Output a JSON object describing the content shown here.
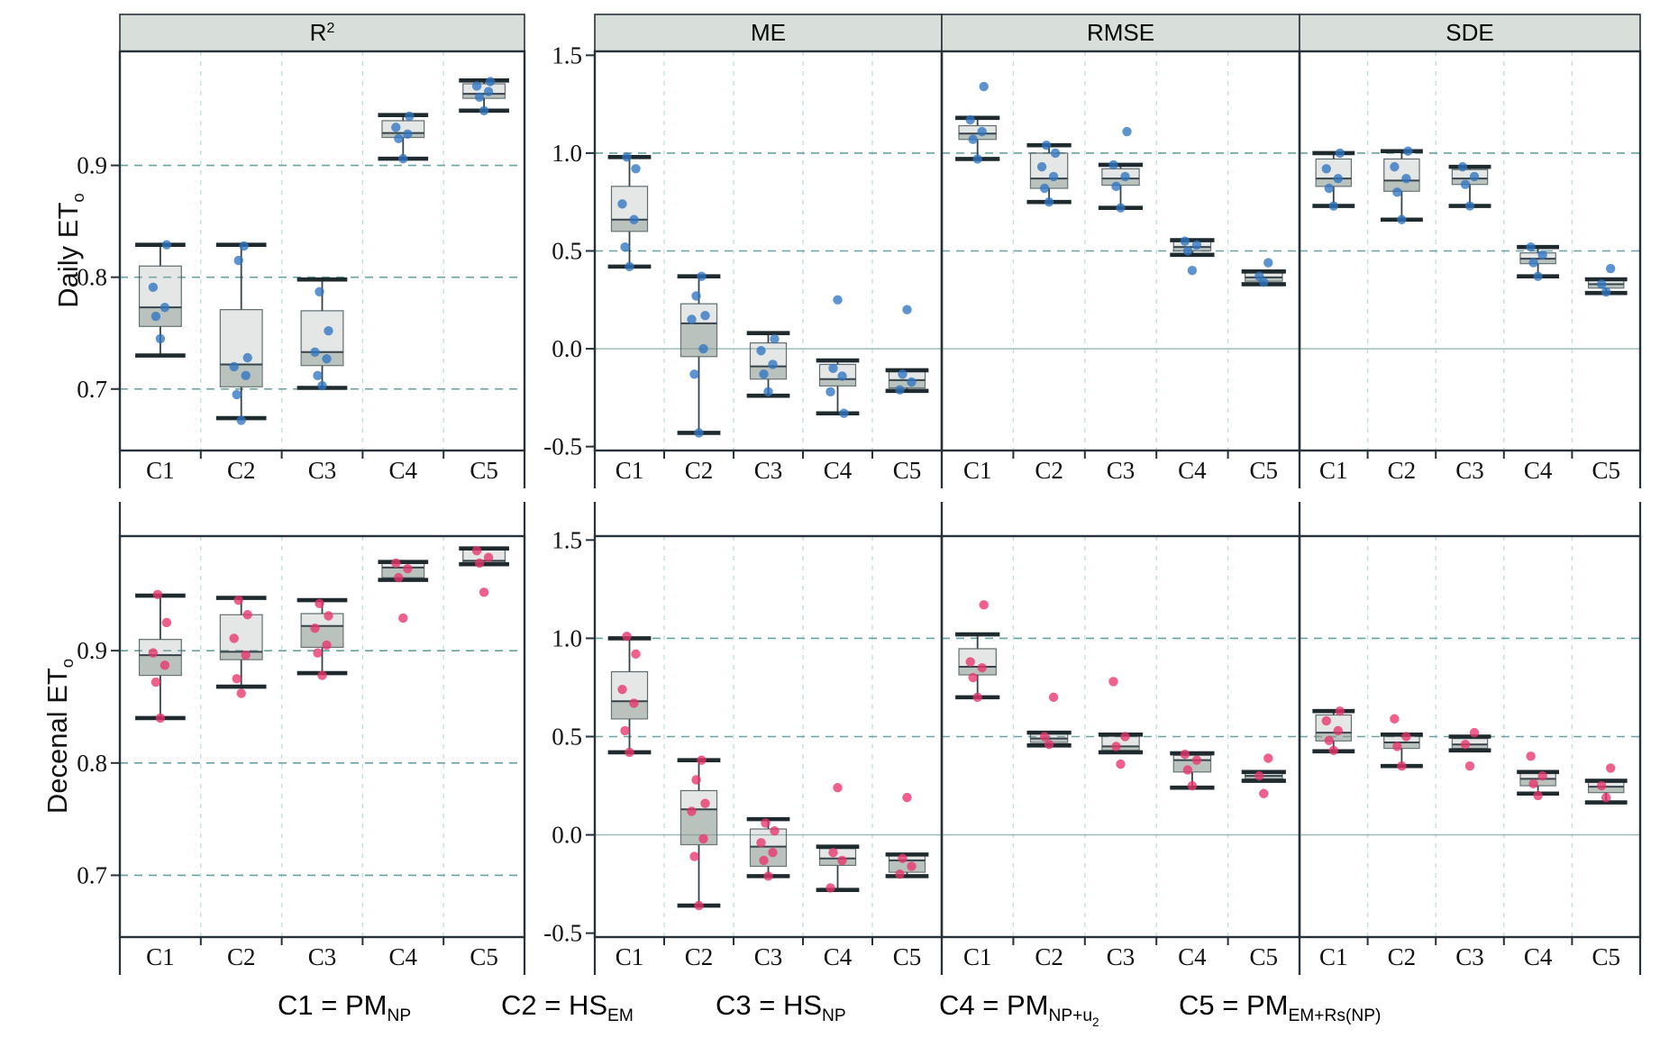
{
  "rows": [
    {
      "label": "Daily ET",
      "sub": "o"
    },
    {
      "label": "Decenal ET",
      "sub": "o"
    }
  ],
  "categories": [
    "C1",
    "C2",
    "C3",
    "C4",
    "C5"
  ],
  "headers": [
    {
      "text": "R",
      "sup": "2"
    },
    {
      "text": "ME",
      "sup": ""
    },
    {
      "text": "RMSE",
      "sup": ""
    },
    {
      "text": "SDE",
      "sup": ""
    }
  ],
  "legend": {
    "items": [
      {
        "main": "C1 = PM",
        "sub": "NP",
        "sub2": ""
      },
      {
        "main": "C2 = HS",
        "sub": "EM",
        "sub2": ""
      },
      {
        "main": "C3 = HS",
        "sub": "NP",
        "sub2": ""
      },
      {
        "main": "C4 = PM",
        "sub": "NP+u",
        "sub2": "2"
      },
      {
        "main": "C5 = PM",
        "sub": "EM+Rs(NP)",
        "sub2": ""
      }
    ]
  },
  "colors": {
    "header_bg": "#d8dfda",
    "frame": "#27313a",
    "h_grid": "#69a2a2",
    "v_grid": "#c3e0df",
    "zero_line": "#95b8b4",
    "box_fill": "rgba(164,177,172,0.30)",
    "box_inner": "rgba(128,142,137,0.42)",
    "box_stroke": "rgba(70,85,88,0.85)",
    "median": "#37434a",
    "whisker": "#37434a",
    "cap": "#1f2a2f",
    "point_daily": "#2f75c2",
    "point_decenal": "#e8356b",
    "tick_text": "#111111"
  },
  "chart_data": [
    {
      "type": "box",
      "row": "Daily ETo",
      "metric": "R2",
      "ylim": [
        0.645,
        1.002
      ],
      "yticks": [
        0.7,
        0.8,
        0.9
      ],
      "ytick_labels": [
        "0.7",
        "0.8",
        "0.9"
      ],
      "show_ytick_labels": true,
      "zero_line": false,
      "boxes": [
        {
          "cat": "C1",
          "low": 0.73,
          "q1": 0.756,
          "med": 0.773,
          "q3": 0.81,
          "high": 0.829,
          "points": [
            0.745,
            0.765,
            0.773,
            0.791,
            0.829
          ]
        },
        {
          "cat": "C2",
          "low": 0.674,
          "q1": 0.702,
          "med": 0.722,
          "q3": 0.771,
          "high": 0.829,
          "points": [
            0.672,
            0.695,
            0.712,
            0.72,
            0.728,
            0.815,
            0.828
          ]
        },
        {
          "cat": "C3",
          "low": 0.701,
          "q1": 0.721,
          "med": 0.733,
          "q3": 0.77,
          "high": 0.798,
          "points": [
            0.703,
            0.712,
            0.727,
            0.733,
            0.752,
            0.787
          ]
        },
        {
          "cat": "C4",
          "low": 0.906,
          "q1": 0.925,
          "med": 0.929,
          "q3": 0.94,
          "high": 0.945,
          "points": [
            0.906,
            0.924,
            0.928,
            0.934,
            0.944
          ]
        },
        {
          "cat": "C5",
          "low": 0.949,
          "q1": 0.96,
          "med": 0.964,
          "q3": 0.973,
          "high": 0.976,
          "points": [
            0.949,
            0.961,
            0.966,
            0.971,
            0.975
          ]
        }
      ]
    },
    {
      "type": "box",
      "row": "Daily ETo",
      "metric": "ME",
      "ylim": [
        -0.52,
        1.52
      ],
      "yticks": [
        -0.5,
        0.0,
        0.5,
        1.0,
        1.5
      ],
      "ytick_labels": [
        "-0.5",
        "0.0",
        "0.5",
        "1.0",
        "1.5"
      ],
      "show_ytick_labels": true,
      "zero_line": true,
      "boxes": [
        {
          "cat": "C1",
          "low": 0.42,
          "q1": 0.6,
          "med": 0.66,
          "q3": 0.83,
          "high": 0.98,
          "points": [
            0.42,
            0.52,
            0.66,
            0.74,
            0.92,
            0.98
          ]
        },
        {
          "cat": "C2",
          "low": -0.43,
          "q1": -0.04,
          "med": 0.13,
          "q3": 0.23,
          "high": 0.37,
          "points": [
            -0.43,
            -0.13,
            0.0,
            0.15,
            0.17,
            0.27,
            0.37
          ]
        },
        {
          "cat": "C3",
          "low": -0.24,
          "q1": -0.155,
          "med": -0.09,
          "q3": 0.03,
          "high": 0.08,
          "points": [
            -0.22,
            -0.13,
            -0.08,
            -0.01,
            0.05
          ]
        },
        {
          "cat": "C4",
          "low": -0.33,
          "q1": -0.19,
          "med": -0.155,
          "q3": -0.08,
          "high": -0.06,
          "points": [
            0.25,
            -0.1,
            -0.14,
            -0.22,
            -0.33
          ]
        },
        {
          "cat": "C5",
          "low": -0.215,
          "q1": -0.2,
          "med": -0.16,
          "q3": -0.115,
          "high": -0.11,
          "points": [
            0.2,
            -0.13,
            -0.17,
            -0.21
          ]
        }
      ]
    },
    {
      "type": "box",
      "row": "Daily ETo",
      "metric": "RMSE",
      "ylim": [
        -0.52,
        1.52
      ],
      "yticks": [
        -0.5,
        0.0,
        0.5,
        1.0,
        1.5
      ],
      "ytick_labels": [
        "-0.5",
        "0.0",
        "0.5",
        "1.0",
        "1.5"
      ],
      "show_ytick_labels": false,
      "zero_line": true,
      "boxes": [
        {
          "cat": "C1",
          "low": 0.97,
          "q1": 1.07,
          "med": 1.1,
          "q3": 1.14,
          "high": 1.18,
          "points": [
            0.97,
            1.07,
            1.11,
            1.17,
            1.34
          ]
        },
        {
          "cat": "C2",
          "low": 0.75,
          "q1": 0.82,
          "med": 0.87,
          "q3": 1.0,
          "high": 1.04,
          "points": [
            0.75,
            0.82,
            0.88,
            0.93,
            1.0,
            1.04
          ]
        },
        {
          "cat": "C3",
          "low": 0.72,
          "q1": 0.836,
          "med": 0.87,
          "q3": 0.92,
          "high": 0.94,
          "points": [
            0.72,
            0.83,
            0.88,
            0.94,
            1.11
          ]
        },
        {
          "cat": "C4",
          "low": 0.48,
          "q1": 0.5,
          "med": 0.52,
          "q3": 0.55,
          "high": 0.555,
          "points": [
            0.4,
            0.5,
            0.53,
            0.55
          ]
        },
        {
          "cat": "C5",
          "low": 0.33,
          "q1": 0.345,
          "med": 0.365,
          "q3": 0.39,
          "high": 0.395,
          "points": [
            0.34,
            0.37,
            0.44
          ]
        }
      ]
    },
    {
      "type": "box",
      "row": "Daily ETo",
      "metric": "SDE",
      "ylim": [
        -0.52,
        1.52
      ],
      "yticks": [
        -0.5,
        0.0,
        0.5,
        1.0,
        1.5
      ],
      "ytick_labels": [
        "-0.5",
        "0.0",
        "0.5",
        "1.0",
        "1.5"
      ],
      "show_ytick_labels": false,
      "zero_line": true,
      "boxes": [
        {
          "cat": "C1",
          "low": 0.73,
          "q1": 0.83,
          "med": 0.87,
          "q3": 0.97,
          "high": 1.0,
          "points": [
            0.73,
            0.82,
            0.87,
            0.92,
            1.0
          ]
        },
        {
          "cat": "C2",
          "low": 0.66,
          "q1": 0.805,
          "med": 0.86,
          "q3": 0.97,
          "high": 1.01,
          "points": [
            0.66,
            0.8,
            0.87,
            0.93,
            1.01
          ]
        },
        {
          "cat": "C3",
          "low": 0.73,
          "q1": 0.84,
          "med": 0.87,
          "q3": 0.916,
          "high": 0.93,
          "points": [
            0.73,
            0.84,
            0.88,
            0.93
          ]
        },
        {
          "cat": "C4",
          "low": 0.37,
          "q1": 0.435,
          "med": 0.46,
          "q3": 0.49,
          "high": 0.52,
          "points": [
            0.37,
            0.44,
            0.48,
            0.52
          ]
        },
        {
          "cat": "C5",
          "low": 0.285,
          "q1": 0.31,
          "med": 0.33,
          "q3": 0.35,
          "high": 0.355,
          "points": [
            0.29,
            0.33,
            0.41
          ]
        }
      ]
    },
    {
      "type": "box",
      "row": "Decenal ETo",
      "metric": "R2",
      "ylim": [
        0.645,
        1.002
      ],
      "yticks": [
        0.7,
        0.8,
        0.9
      ],
      "ytick_labels": [
        "0.7",
        "0.8",
        "0.9"
      ],
      "show_ytick_labels": true,
      "zero_line": false,
      "boxes": [
        {
          "cat": "C1",
          "low": 0.84,
          "q1": 0.878,
          "med": 0.896,
          "q3": 0.91,
          "high": 0.949,
          "points": [
            0.84,
            0.872,
            0.887,
            0.898,
            0.925,
            0.95
          ]
        },
        {
          "cat": "C2",
          "low": 0.868,
          "q1": 0.892,
          "med": 0.899,
          "q3": 0.932,
          "high": 0.947,
          "points": [
            0.862,
            0.875,
            0.896,
            0.911,
            0.932,
            0.945
          ]
        },
        {
          "cat": "C3",
          "low": 0.88,
          "q1": 0.903,
          "med": 0.922,
          "q3": 0.933,
          "high": 0.945,
          "points": [
            0.878,
            0.898,
            0.905,
            0.92,
            0.931,
            0.942
          ]
        },
        {
          "cat": "C4",
          "low": 0.963,
          "q1": 0.965,
          "med": 0.974,
          "q3": 0.978,
          "high": 0.979,
          "points": [
            0.929,
            0.965,
            0.973,
            0.978
          ]
        },
        {
          "cat": "C5",
          "low": 0.977,
          "q1": 0.978,
          "med": 0.98,
          "q3": 0.99,
          "high": 0.991,
          "points": [
            0.952,
            0.978,
            0.983,
            0.989
          ]
        }
      ]
    },
    {
      "type": "box",
      "row": "Decenal ETo",
      "metric": "ME",
      "ylim": [
        -0.52,
        1.52
      ],
      "yticks": [
        -0.5,
        0.0,
        0.5,
        1.0,
        1.5
      ],
      "ytick_labels": [
        "-0.5",
        "0.0",
        "0.5",
        "1.0",
        "1.5"
      ],
      "show_ytick_labels": true,
      "zero_line": true,
      "boxes": [
        {
          "cat": "C1",
          "low": 0.42,
          "q1": 0.59,
          "med": 0.68,
          "q3": 0.83,
          "high": 1.0,
          "points": [
            0.42,
            0.53,
            0.67,
            0.74,
            0.92,
            1.01
          ]
        },
        {
          "cat": "C2",
          "low": -0.36,
          "q1": -0.05,
          "med": 0.13,
          "q3": 0.225,
          "high": 0.38,
          "points": [
            -0.36,
            -0.11,
            -0.02,
            0.12,
            0.16,
            0.28,
            0.38
          ]
        },
        {
          "cat": "C3",
          "low": -0.21,
          "q1": -0.16,
          "med": -0.06,
          "q3": 0.03,
          "high": 0.08,
          "points": [
            -0.21,
            -0.13,
            -0.09,
            -0.04,
            0.02,
            0.06
          ]
        },
        {
          "cat": "C4",
          "low": -0.28,
          "q1": -0.155,
          "med": -0.12,
          "q3": -0.07,
          "high": -0.06,
          "points": [
            0.24,
            -0.09,
            -0.13,
            -0.27
          ]
        },
        {
          "cat": "C5",
          "low": -0.21,
          "q1": -0.19,
          "med": -0.13,
          "q3": -0.105,
          "high": -0.1,
          "points": [
            0.19,
            -0.12,
            -0.16,
            -0.2
          ]
        }
      ]
    },
    {
      "type": "box",
      "row": "Decenal ETo",
      "metric": "RMSE",
      "ylim": [
        -0.52,
        1.52
      ],
      "yticks": [
        -0.5,
        0.0,
        0.5,
        1.0,
        1.5
      ],
      "ytick_labels": [
        "-0.5",
        "0.0",
        "0.5",
        "1.0",
        "1.5"
      ],
      "show_ytick_labels": false,
      "zero_line": true,
      "boxes": [
        {
          "cat": "C1",
          "low": 0.7,
          "q1": 0.814,
          "med": 0.855,
          "q3": 0.947,
          "high": 1.02,
          "points": [
            0.7,
            0.8,
            0.85,
            0.88,
            1.17
          ]
        },
        {
          "cat": "C2",
          "low": 0.455,
          "q1": 0.47,
          "med": 0.49,
          "q3": 0.515,
          "high": 0.52,
          "points": [
            0.46,
            0.5,
            0.7
          ]
        },
        {
          "cat": "C3",
          "low": 0.42,
          "q1": 0.43,
          "med": 0.45,
          "q3": 0.505,
          "high": 0.51,
          "points": [
            0.36,
            0.45,
            0.5,
            0.78
          ]
        },
        {
          "cat": "C4",
          "low": 0.24,
          "q1": 0.32,
          "med": 0.38,
          "q3": 0.405,
          "high": 0.415,
          "points": [
            0.25,
            0.33,
            0.38,
            0.41
          ]
        },
        {
          "cat": "C5",
          "low": 0.275,
          "q1": 0.285,
          "med": 0.3,
          "q3": 0.315,
          "high": 0.32,
          "points": [
            0.21,
            0.3,
            0.39
          ]
        }
      ]
    },
    {
      "type": "box",
      "row": "Decenal ETo",
      "metric": "SDE",
      "ylim": [
        -0.52,
        1.52
      ],
      "yticks": [
        -0.5,
        0.0,
        0.5,
        1.0,
        1.5
      ],
      "ytick_labels": [
        "-0.5",
        "0.0",
        "0.5",
        "1.0",
        "1.5"
      ],
      "show_ytick_labels": false,
      "zero_line": true,
      "boxes": [
        {
          "cat": "C1",
          "low": 0.425,
          "q1": 0.478,
          "med": 0.52,
          "q3": 0.61,
          "high": 0.63,
          "points": [
            0.43,
            0.48,
            0.53,
            0.58,
            0.63
          ]
        },
        {
          "cat": "C2",
          "low": 0.35,
          "q1": 0.44,
          "med": 0.47,
          "q3": 0.505,
          "high": 0.51,
          "points": [
            0.35,
            0.45,
            0.5,
            0.59
          ]
        },
        {
          "cat": "C3",
          "low": 0.43,
          "q1": 0.44,
          "med": 0.46,
          "q3": 0.49,
          "high": 0.5,
          "points": [
            0.35,
            0.46,
            0.52
          ]
        },
        {
          "cat": "C4",
          "low": 0.21,
          "q1": 0.25,
          "med": 0.285,
          "q3": 0.315,
          "high": 0.32,
          "points": [
            0.2,
            0.26,
            0.3,
            0.4
          ]
        },
        {
          "cat": "C5",
          "low": 0.165,
          "q1": 0.215,
          "med": 0.245,
          "q3": 0.27,
          "high": 0.275,
          "points": [
            0.19,
            0.25,
            0.34
          ]
        }
      ]
    }
  ]
}
